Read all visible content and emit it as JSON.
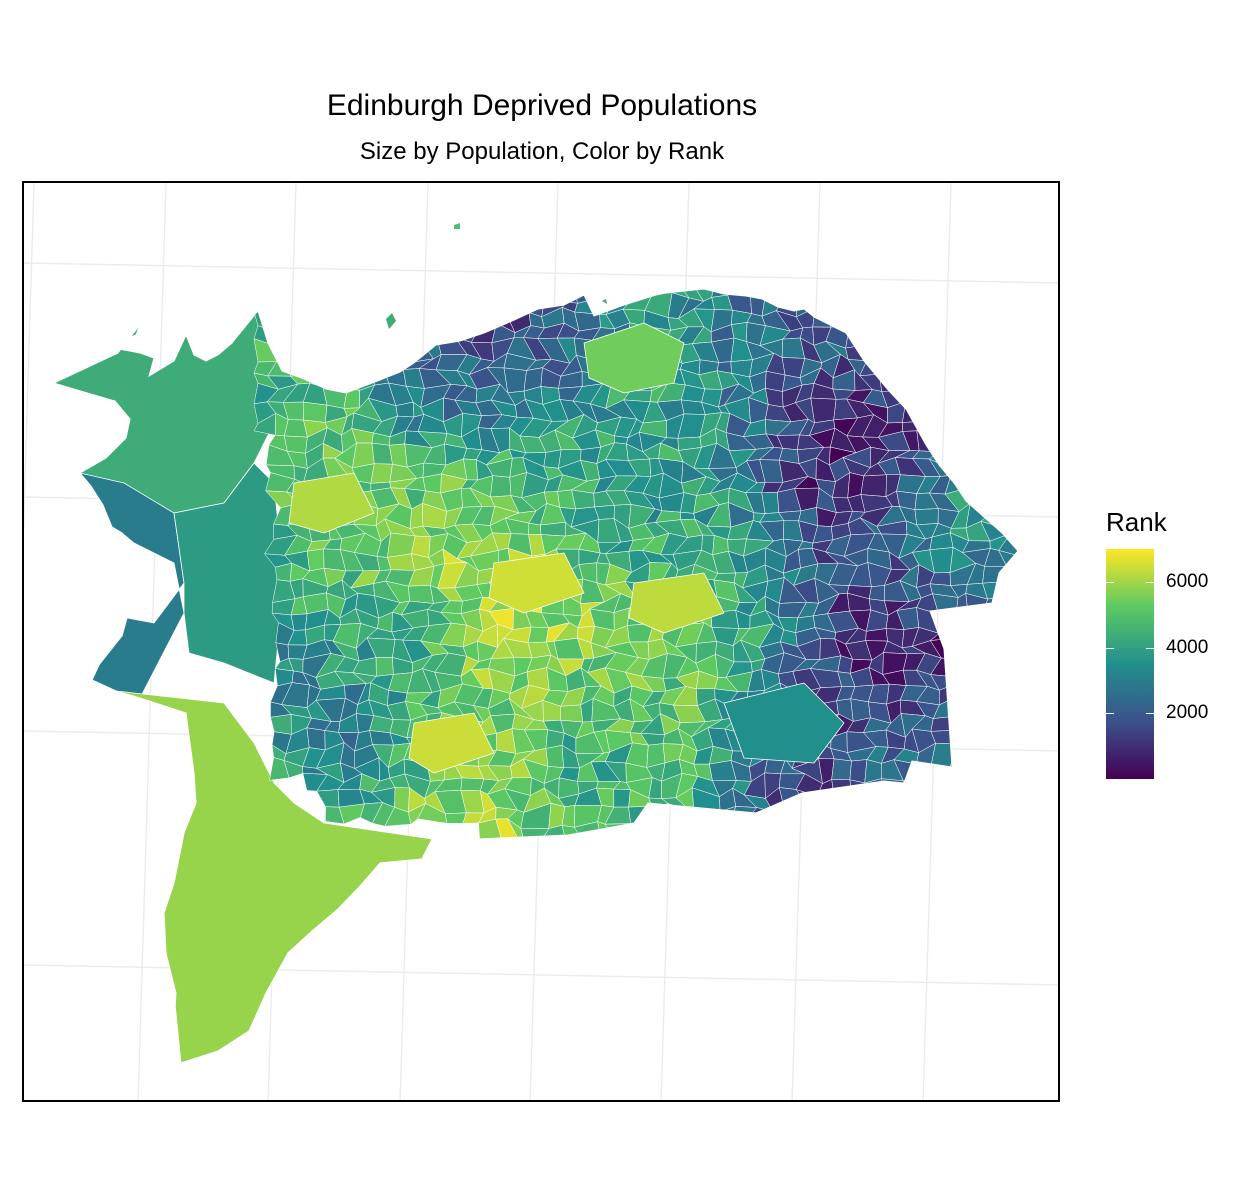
{
  "title": "Edinburgh Deprived Populations",
  "subtitle": "Size by Population, Color by Rank",
  "legend": {
    "title": "Rank",
    "min": 1,
    "max": 7000,
    "colors": [
      "#440154",
      "#3b528b",
      "#21908d",
      "#5dc962",
      "#fde725"
    ],
    "ticks": [
      {
        "value": 2000,
        "label": "2000"
      },
      {
        "value": 4000,
        "label": "4000"
      },
      {
        "value": 6000,
        "label": "6000"
      }
    ]
  },
  "map": {
    "boundary_color": "#ffffff",
    "grid_color": "#ebebeb"
  }
}
